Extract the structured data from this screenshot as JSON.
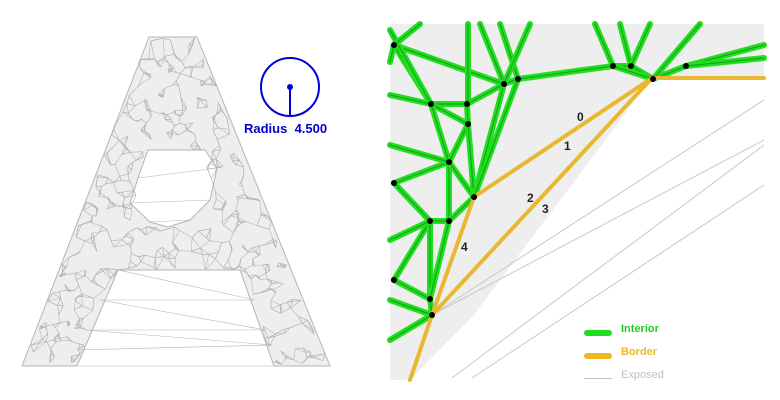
{
  "left_figure": {
    "radius_label": "Radius",
    "radius_value": "4.500",
    "colors": {
      "mesh_fill": "#eeeeee",
      "mesh_edge": "#b4b4b4",
      "radius_circle": "#0000dd"
    }
  },
  "right_figure": {
    "edge_labels": [
      "0",
      "1",
      "2",
      "3",
      "4"
    ],
    "legend": [
      {
        "label": "Interior",
        "color": "#22dd22",
        "icon": "interior-edge-swatch"
      },
      {
        "label": "Border",
        "color": "#f0b820",
        "icon": "border-edge-swatch"
      },
      {
        "label": "Exposed",
        "color": "#c0c0c0",
        "icon": "exposed-edge-swatch"
      }
    ],
    "colors": {
      "interior": "#22dd22",
      "interior_core": "#22aa22",
      "border": "#e8b830",
      "exposed": "#c8c8c8",
      "node": "#000000",
      "fill": "#eeeeee"
    }
  }
}
